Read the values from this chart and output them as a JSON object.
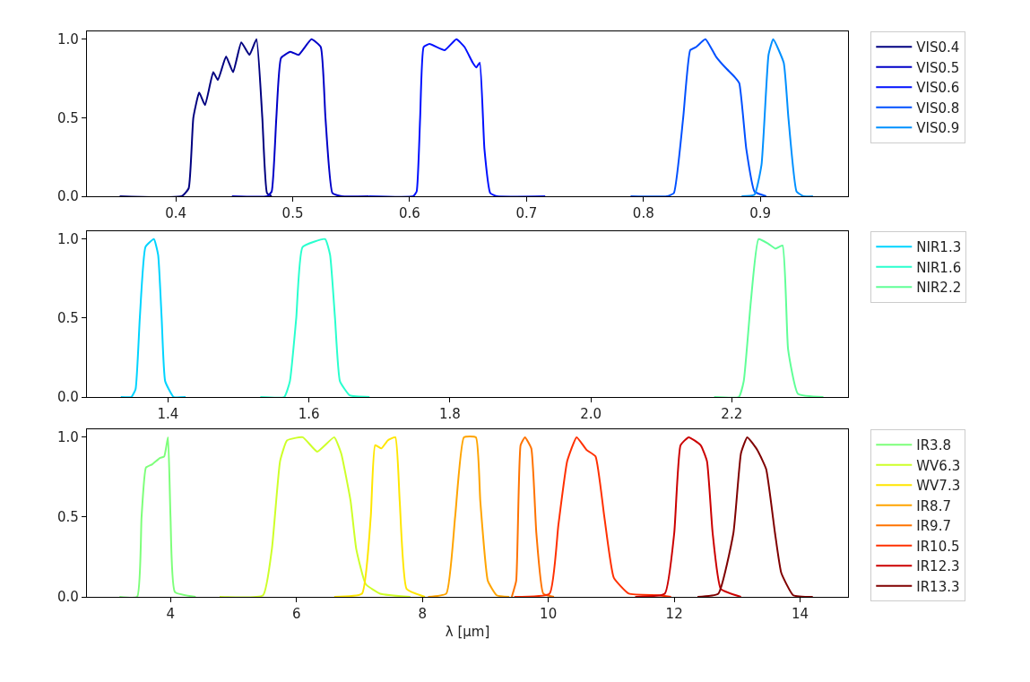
{
  "chart_data": [
    {
      "type": "line",
      "xlim": [
        0.324,
        0.975
      ],
      "ylim": [
        0,
        1.05
      ],
      "xticks": [
        0.4,
        0.5,
        0.6,
        0.7,
        0.8,
        0.9
      ],
      "yticks": [
        {
          "value": 0,
          "label": "0.0"
        },
        {
          "value": 0.5,
          "label": "0.5"
        },
        {
          "value": 1,
          "label": "1.0"
        }
      ],
      "legend": "right",
      "series": [
        {
          "name": "VIS0.4",
          "color": "#000080",
          "x": [
            0.352,
            0.405,
            0.411,
            0.415,
            0.42,
            0.425,
            0.432,
            0.436,
            0.443,
            0.449,
            0.456,
            0.463,
            0.469,
            0.474,
            0.478,
            0.482
          ],
          "values": [
            0,
            0,
            0.05,
            0.5,
            0.66,
            0.58,
            0.79,
            0.74,
            0.89,
            0.79,
            0.98,
            0.9,
            1.0,
            0.5,
            0.02,
            0
          ]
        },
        {
          "name": "VIS0.5",
          "color": "#0000c8",
          "x": [
            0.448,
            0.478,
            0.482,
            0.486,
            0.49,
            0.498,
            0.505,
            0.516,
            0.524,
            0.528,
            0.534,
            0.542,
            0.565
          ],
          "values": [
            0,
            0,
            0.03,
            0.5,
            0.88,
            0.92,
            0.9,
            1.0,
            0.95,
            0.5,
            0.02,
            0,
            0
          ]
        },
        {
          "name": "VIS0.6",
          "color": "#0010ff",
          "x": [
            0.565,
            0.603,
            0.606,
            0.609,
            0.612,
            0.617,
            0.63,
            0.64,
            0.647,
            0.654,
            0.657,
            0.66,
            0.664,
            0.669,
            0.675,
            0.716
          ],
          "values": [
            0,
            0,
            0.03,
            0.5,
            0.95,
            0.97,
            0.93,
            1.0,
            0.95,
            0.85,
            0.82,
            0.85,
            0.3,
            0.02,
            0,
            0
          ]
        },
        {
          "name": "VIS0.8",
          "color": "#0050ff",
          "x": [
            0.789,
            0.82,
            0.826,
            0.834,
            0.84,
            0.845,
            0.853,
            0.862,
            0.87,
            0.878,
            0.882,
            0.888,
            0.895,
            0.905
          ],
          "values": [
            0,
            0,
            0.02,
            0.5,
            0.93,
            0.95,
            1.0,
            0.89,
            0.82,
            0.76,
            0.72,
            0.3,
            0.03,
            0
          ]
        },
        {
          "name": "VIS0.9",
          "color": "#0090ff",
          "x": [
            0.884,
            0.895,
            0.901,
            0.907,
            0.911,
            0.92,
            0.924,
            0.931,
            0.937,
            0.945
          ],
          "values": [
            0,
            0.01,
            0.2,
            0.9,
            1.0,
            0.85,
            0.5,
            0.03,
            0,
            0
          ]
        }
      ]
    },
    {
      "type": "line",
      "xlim": [
        1.285,
        2.365
      ],
      "ylim": [
        0,
        1.05
      ],
      "xticks": [
        1.4,
        1.6,
        1.8,
        {
          "value": 2.0,
          "label": "2.0"
        },
        2.2
      ],
      "yticks": [
        {
          "value": 0,
          "label": "0.0"
        },
        {
          "value": 0.5,
          "label": "0.5"
        },
        {
          "value": 1,
          "label": "1.0"
        }
      ],
      "legend": "right",
      "series": [
        {
          "name": "NIR1.3",
          "color": "#00d4ff",
          "x": [
            1.333,
            1.348,
            1.354,
            1.36,
            1.368,
            1.38,
            1.386,
            1.391,
            1.396,
            1.408,
            1.425
          ],
          "values": [
            0,
            0,
            0.05,
            0.5,
            0.95,
            1.0,
            0.9,
            0.5,
            0.1,
            0,
            0
          ]
        },
        {
          "name": "NIR1.6",
          "color": "#29ffce",
          "x": [
            1.531,
            1.565,
            1.573,
            1.582,
            1.591,
            1.623,
            1.63,
            1.637,
            1.644,
            1.658,
            1.686
          ],
          "values": [
            0,
            0,
            0.1,
            0.5,
            0.95,
            1.0,
            0.9,
            0.5,
            0.1,
            0.01,
            0
          ]
        },
        {
          "name": "NIR2.2",
          "color": "#60ff97",
          "x": [
            2.175,
            2.21,
            2.217,
            2.227,
            2.238,
            2.252,
            2.262,
            2.272,
            2.28,
            2.294,
            2.33
          ],
          "values": [
            0,
            0,
            0.1,
            0.6,
            1.0,
            0.97,
            0.94,
            0.96,
            0.3,
            0.02,
            0
          ]
        }
      ]
    },
    {
      "type": "line",
      "xlabel": "λ [μm]",
      "xlim": [
        2.673,
        14.76
      ],
      "ylim": [
        0,
        1.05
      ],
      "xticks": [
        4,
        6,
        8,
        10,
        12,
        14
      ],
      "yticks": [
        {
          "value": 0,
          "label": "0.0"
        },
        {
          "value": 0.5,
          "label": "0.5"
        },
        {
          "value": 1,
          "label": "1.0"
        }
      ],
      "legend": "right",
      "series": [
        {
          "name": "IR3.8",
          "color": "#7dff7a",
          "x": [
            3.19,
            3.47,
            3.54,
            3.61,
            3.71,
            3.83,
            3.9,
            3.96,
            4.0,
            4.07,
            4.4
          ],
          "values": [
            0,
            0,
            0.5,
            0.81,
            0.83,
            0.87,
            0.88,
            1.0,
            0.5,
            0.03,
            0
          ]
        },
        {
          "name": "WV6.3",
          "color": "#ceff29",
          "x": [
            4.78,
            5.47,
            5.61,
            5.74,
            5.85,
            6.1,
            6.33,
            6.6,
            6.71,
            6.86,
            6.95,
            7.1,
            7.33,
            7.81
          ],
          "values": [
            0,
            0.01,
            0.3,
            0.85,
            0.98,
            1.0,
            0.91,
            1.0,
            0.9,
            0.6,
            0.3,
            0.08,
            0.02,
            0
          ]
        },
        {
          "name": "WV7.3",
          "color": "#ffe600",
          "x": [
            6.6,
            7.04,
            7.18,
            7.25,
            7.35,
            7.45,
            7.57,
            7.64,
            7.75,
            8.04
          ],
          "values": [
            0,
            0.02,
            0.5,
            0.95,
            0.93,
            0.98,
            1.0,
            0.6,
            0.05,
            0
          ]
        },
        {
          "name": "IR8.7",
          "color": "#ffa400",
          "x": [
            8.09,
            8.38,
            8.52,
            8.66,
            8.85,
            8.92,
            9.04,
            9.18,
            9.38
          ],
          "values": [
            0,
            0.02,
            0.5,
            1.0,
            1.0,
            0.6,
            0.1,
            0.01,
            0
          ]
        },
        {
          "name": "IR9.7",
          "color": "#ff7300",
          "x": [
            9.42,
            9.49,
            9.56,
            9.63,
            9.73,
            9.81,
            9.92,
            10.09
          ],
          "values": [
            0,
            0.1,
            0.95,
            1.0,
            0.93,
            0.4,
            0.02,
            0
          ]
        },
        {
          "name": "IR10.5",
          "color": "#ff3000",
          "x": [
            9.46,
            10.02,
            10.16,
            10.3,
            10.45,
            10.61,
            10.75,
            10.89,
            11.04,
            11.28,
            11.75,
            11.95
          ],
          "values": [
            0,
            0.02,
            0.45,
            0.85,
            1.0,
            0.92,
            0.88,
            0.5,
            0.12,
            0.02,
            0.01,
            0
          ]
        },
        {
          "name": "IR12.3",
          "color": "#cc0000",
          "x": [
            11.38,
            11.85,
            12.0,
            12.1,
            12.23,
            12.42,
            12.52,
            12.61,
            12.74,
            13.06
          ],
          "values": [
            0,
            0.02,
            0.4,
            0.95,
            1.0,
            0.95,
            0.85,
            0.4,
            0.05,
            0
          ]
        },
        {
          "name": "IR13.3",
          "color": "#800000",
          "x": [
            12.37,
            12.7,
            12.94,
            13.06,
            13.16,
            13.32,
            13.46,
            13.6,
            13.7,
            13.89,
            14.2
          ],
          "values": [
            0,
            0.02,
            0.4,
            0.9,
            1.0,
            0.92,
            0.8,
            0.4,
            0.15,
            0.01,
            0
          ]
        }
      ]
    }
  ]
}
